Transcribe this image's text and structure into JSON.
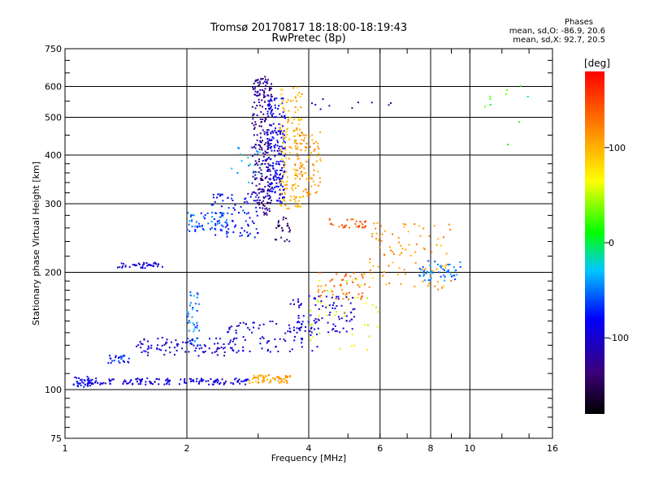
{
  "chart_data": {
    "type": "scatter",
    "title": "Tromsø 20170817 18:18:00-18:19:43",
    "subtitle": "RwPretec (8p)",
    "xlabel": "Frequency [MHz]",
    "ylabel": "Stationary phase Virtual Height [km]",
    "x_scale": "log",
    "y_scale": "log",
    "xlim": [
      1,
      16
    ],
    "ylim": [
      75,
      750
    ],
    "x_ticks": [
      1,
      2,
      4,
      6,
      8,
      10,
      16
    ],
    "x_tick_labels": [
      "1",
      "2",
      "4",
      "6",
      "8",
      "10",
      "16"
    ],
    "y_ticks": [
      75,
      100,
      200,
      300,
      400,
      500,
      600,
      750
    ],
    "y_tick_labels": [
      "75",
      "100",
      "200",
      "300",
      "400",
      "500",
      "600",
      "750"
    ],
    "grid": true,
    "colorbar": {
      "label": "[deg]",
      "range": [
        -180,
        180
      ],
      "ticks": [
        100,
        0,
        -100
      ],
      "tick_labels": [
        "100",
        "0",
        "-100"
      ],
      "colormap": "rainbow",
      "colors": [
        "#000000",
        "#3c0078",
        "#0000ff",
        "#00c8ff",
        "#00ff00",
        "#ffff00",
        "#ff8000",
        "#ff0000"
      ]
    },
    "stats": {
      "header": "Phases",
      "line_o": "mean, sd,O: -86.9, 20.6",
      "line_x": "mean, sd,X: 92.7, 20.5"
    },
    "clusters": [
      {
        "f": [
          1.05,
          1.16
        ],
        "h": [
          101,
          108
        ],
        "phase": -85,
        "count": 40
      },
      {
        "f": [
          1.16,
          2.85
        ],
        "h": [
          103,
          107
        ],
        "phase": -95,
        "count": 140
      },
      {
        "f": [
          2.85,
          3.6
        ],
        "h": [
          104,
          109
        ],
        "phase": 105,
        "count": 60
      },
      {
        "f": [
          1.28,
          1.45
        ],
        "h": [
          117,
          123
        ],
        "phase": -70,
        "count": 25
      },
      {
        "f": [
          1.5,
          2.7
        ],
        "h": [
          122,
          136
        ],
        "phase": -100,
        "count": 100
      },
      {
        "f": [
          2.0,
          2.15
        ],
        "h": [
          130,
          180
        ],
        "phase": -50,
        "count": 40
      },
      {
        "f": [
          2.5,
          4.2
        ],
        "h": [
          125,
          150
        ],
        "phase": -95,
        "count": 80
      },
      {
        "f": [
          3.6,
          5.2
        ],
        "h": [
          140,
          175
        ],
        "phase": -95,
        "count": 90
      },
      {
        "f": [
          4.2,
          5.6
        ],
        "h": [
          170,
          200
        ],
        "phase": 130,
        "count": 50
      },
      {
        "f": [
          1.35,
          1.75
        ],
        "h": [
          205,
          212
        ],
        "phase": -95,
        "count": 40
      },
      {
        "f": [
          2.0,
          2.6
        ],
        "h": [
          255,
          285
        ],
        "phase": -60,
        "count": 60
      },
      {
        "f": [
          2.3,
          3.0
        ],
        "h": [
          245,
          320
        ],
        "phase": -80,
        "count": 80
      },
      {
        "f": [
          2.55,
          3.05
        ],
        "h": [
          340,
          420
        ],
        "phase": -35,
        "count": 20
      },
      {
        "f": [
          2.9,
          3.25
        ],
        "h": [
          280,
          640
        ],
        "phase": -125,
        "count": 250
      },
      {
        "f": [
          3.15,
          3.5
        ],
        "h": [
          300,
          560
        ],
        "phase": -90,
        "count": 200
      },
      {
        "f": [
          3.4,
          3.85
        ],
        "h": [
          290,
          600
        ],
        "phase": 100,
        "count": 140
      },
      {
        "f": [
          3.7,
          4.3
        ],
        "h": [
          310,
          460
        ],
        "phase": 112,
        "count": 90
      },
      {
        "f": [
          3.3,
          3.6
        ],
        "h": [
          240,
          280
        ],
        "phase": -140,
        "count": 25
      },
      {
        "f": [
          4.5,
          5.6
        ],
        "h": [
          260,
          275
        ],
        "phase": 140,
        "count": 30
      },
      {
        "f": [
          5.6,
          9.0
        ],
        "h": [
          180,
          270
        ],
        "phase": 110,
        "count": 90
      },
      {
        "f": [
          7.5,
          9.5
        ],
        "h": [
          190,
          215
        ],
        "phase": -50,
        "count": 50
      },
      {
        "f": [
          4.0,
          6.0
        ],
        "h": [
          125,
          200
        ],
        "phase": 60,
        "count": 40
      },
      {
        "f": [
          4.0,
          6.5
        ],
        "h": [
          520,
          560
        ],
        "phase": -120,
        "count": 10
      },
      {
        "f": [
          10.0,
          14.0
        ],
        "h": [
          380,
          620
        ],
        "phase": 20,
        "count": 10
      }
    ]
  }
}
